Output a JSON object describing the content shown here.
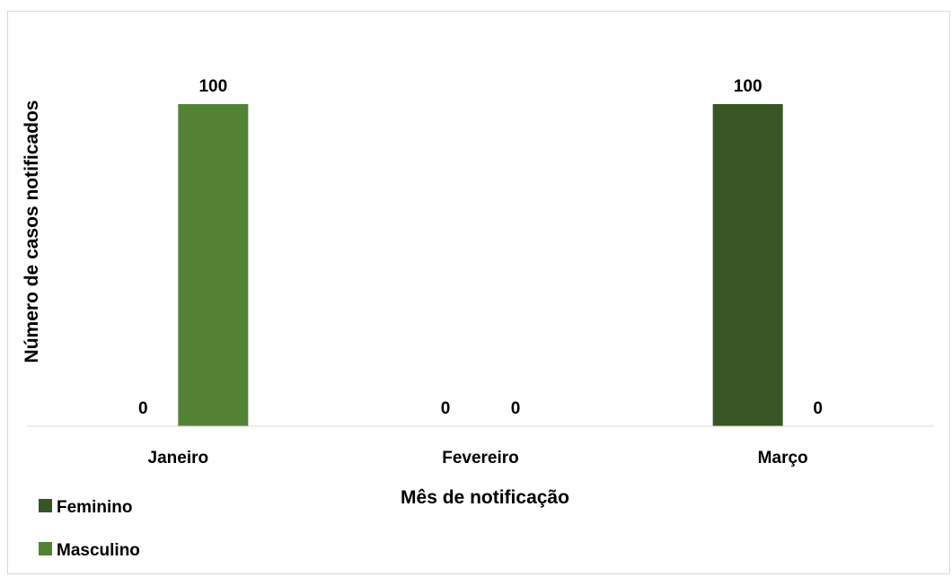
{
  "chart_data": {
    "type": "bar",
    "categories": [
      "Janeiro",
      "Fevereiro",
      "Março"
    ],
    "series": [
      {
        "name": "Feminino",
        "color": "#375623",
        "values": [
          0,
          0,
          100
        ]
      },
      {
        "name": "Masculino",
        "color": "#548235",
        "values": [
          100,
          0,
          0
        ]
      }
    ],
    "data_labels": [
      [
        "0",
        "0",
        "100"
      ],
      [
        "100",
        "0",
        "0"
      ]
    ],
    "xlabel": "Mês de notificação",
    "ylabel": "Número de casos notificados",
    "ylim": [
      0,
      100
    ],
    "grid": false,
    "legend_position": "bottom-left"
  }
}
